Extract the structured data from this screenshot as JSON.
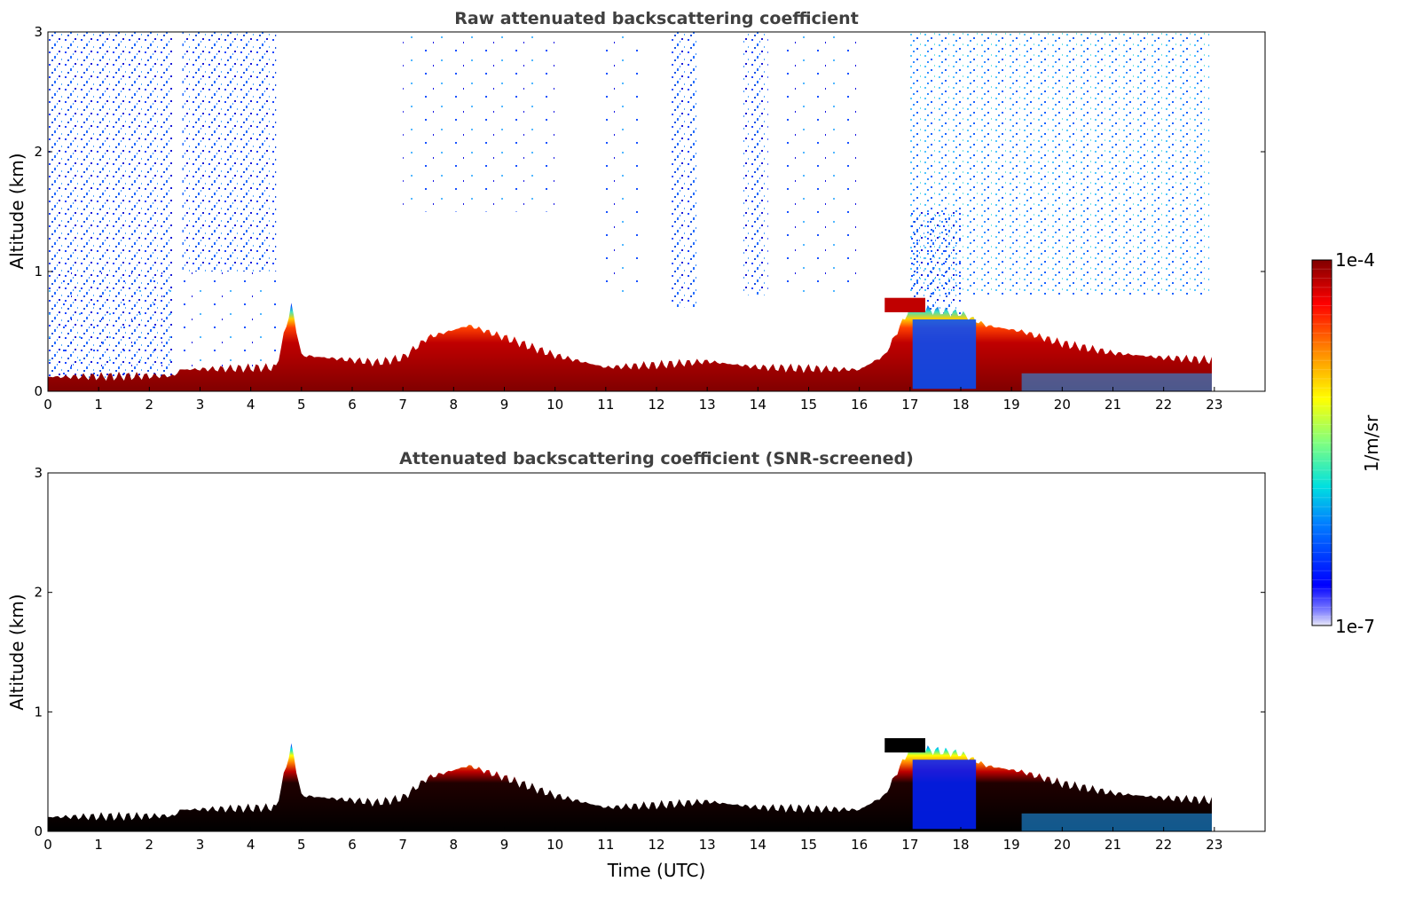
{
  "chart_data": [
    {
      "type": "heatmap",
      "title": "Raw attenuated backscattering coefficient",
      "xlabel": "",
      "ylabel": "Altitude (km)",
      "xlim": [
        0,
        24
      ],
      "ylim": [
        0,
        3
      ],
      "x_ticks": [
        "0",
        "1",
        "2",
        "3",
        "4",
        "5",
        "6",
        "7",
        "8",
        "9",
        "10",
        "11",
        "12",
        "13",
        "14",
        "15",
        "16",
        "17",
        "18",
        "19",
        "20",
        "21",
        "22",
        "23"
      ],
      "y_ticks": [
        "0",
        "1",
        "2",
        "3"
      ],
      "data_extent_hours": [
        0,
        22.95
      ],
      "boundary_layer_top_km": [
        {
          "t": 0,
          "z": 0.12
        },
        {
          "t": 2.5,
          "z": 0.13
        },
        {
          "t": 2.6,
          "z": 0.18
        },
        {
          "t": 4.5,
          "z": 0.2
        },
        {
          "t": 4.8,
          "z": 0.72
        },
        {
          "t": 5.0,
          "z": 0.3
        },
        {
          "t": 6.5,
          "z": 0.24
        },
        {
          "t": 7.0,
          "z": 0.28
        },
        {
          "t": 7.5,
          "z": 0.45
        },
        {
          "t": 8.3,
          "z": 0.55
        },
        {
          "t": 9.0,
          "z": 0.45
        },
        {
          "t": 10.0,
          "z": 0.3
        },
        {
          "t": 11.0,
          "z": 0.2
        },
        {
          "t": 12.0,
          "z": 0.22
        },
        {
          "t": 13.0,
          "z": 0.25
        },
        {
          "t": 14.0,
          "z": 0.2
        },
        {
          "t": 16.0,
          "z": 0.18
        },
        {
          "t": 16.5,
          "z": 0.3
        },
        {
          "t": 17.0,
          "z": 0.7
        },
        {
          "t": 18.0,
          "z": 0.65
        },
        {
          "t": 18.5,
          "z": 0.55
        },
        {
          "t": 19.2,
          "z": 0.5
        },
        {
          "t": 20.0,
          "z": 0.4
        },
        {
          "t": 21.0,
          "z": 0.32
        },
        {
          "t": 22.0,
          "z": 0.28
        },
        {
          "t": 22.95,
          "z": 0.26
        }
      ],
      "elevated_layer": {
        "t_start": 16.5,
        "t_end": 17.3,
        "z_km": 0.72
      }
    },
    {
      "type": "heatmap",
      "title": "Attenuated backscattering coefficient (SNR-screened)",
      "xlabel": "Time (UTC)",
      "ylabel": "Altitude (km)",
      "xlim": [
        0,
        24
      ],
      "ylim": [
        0,
        3
      ],
      "x_ticks": [
        "0",
        "1",
        "2",
        "3",
        "4",
        "5",
        "6",
        "7",
        "8",
        "9",
        "10",
        "11",
        "12",
        "13",
        "14",
        "15",
        "16",
        "17",
        "18",
        "19",
        "20",
        "21",
        "22",
        "23"
      ],
      "y_ticks": [
        "0",
        "1",
        "2",
        "3"
      ],
      "data_extent_hours": [
        0,
        22.95
      ]
    }
  ],
  "colorbar": {
    "label": "1/m/sr",
    "max_label": "1e-4",
    "min_label": "1e-7",
    "scale": "log",
    "range": [
      1e-07,
      0.0001
    ],
    "colormap": "jet"
  }
}
